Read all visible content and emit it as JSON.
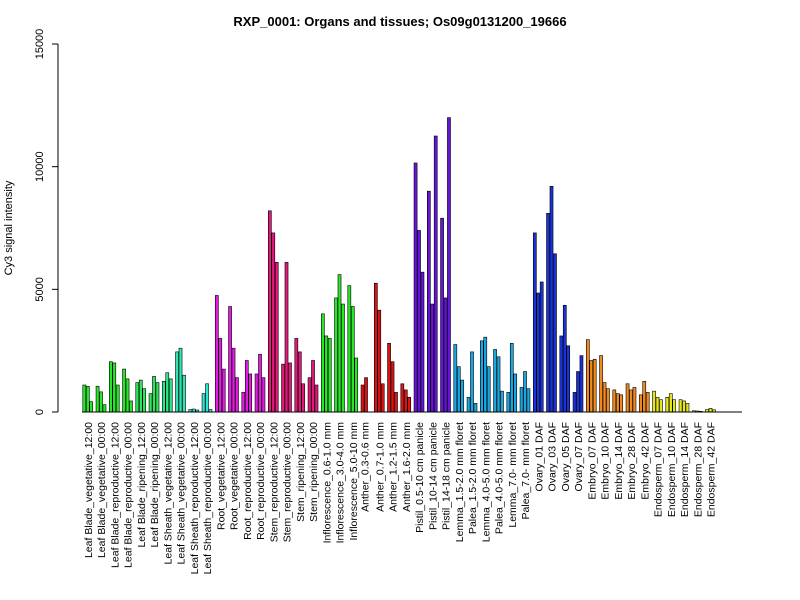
{
  "chart_data": {
    "type": "bar",
    "title": "RXP_0001: Organs and tissues; Os09g0131200_19666",
    "ylabel": "Cy3 signal intensity",
    "xlabel": "",
    "ylim": [
      0,
      15000
    ],
    "yticks": [
      0,
      5000,
      10000,
      15000
    ],
    "grid": false,
    "legend": "none",
    "groups": [
      {
        "label": "Leaf Blade_vegetative_12:00",
        "color": "#29e629",
        "values": [
          1100,
          1050,
          420
        ]
      },
      {
        "label": "Leaf Blade_vegetative_00:00",
        "color": "#29e629",
        "values": [
          1050,
          820,
          300
        ]
      },
      {
        "label": "Leaf Blade_reproductive_12:00",
        "color": "#29e629",
        "values": [
          2050,
          2000,
          1100
        ]
      },
      {
        "label": "Leaf Blade_reproductive_00:00",
        "color": "#29e629",
        "values": [
          1750,
          1350,
          450
        ]
      },
      {
        "label": "Leaf Blade_ripening_12:00",
        "color": "#2ee65c",
        "values": [
          1200,
          1300,
          950
        ]
      },
      {
        "label": "Leaf Blade_ripening_00:00",
        "color": "#2ee65c",
        "values": [
          750,
          1450,
          1200
        ]
      },
      {
        "label": "Leaf Sheath_vegetative_12:00",
        "color": "#2ee68a",
        "values": [
          1250,
          1600,
          1350
        ]
      },
      {
        "label": "Leaf Sheath_vegetative_00:00",
        "color": "#2ee6b4",
        "values": [
          2450,
          2600,
          1500
        ]
      },
      {
        "label": "Leaf Sheath_reproductive_12:00",
        "color": "#2ee6c8",
        "values": [
          100,
          120,
          80
        ]
      },
      {
        "label": "Leaf Sheath_reproductive_00:00",
        "color": "#2ee6d2",
        "values": [
          750,
          1150,
          100
        ]
      },
      {
        "label": "Root_vegetative_12:00",
        "color": "#e01ee0",
        "values": [
          4750,
          3000,
          1750
        ]
      },
      {
        "label": "Root_vegetative_00:00",
        "color": "#e01ee0",
        "values": [
          4300,
          2600,
          1400
        ]
      },
      {
        "label": "Root_reproductive_12:00",
        "color": "#e01ee0",
        "values": [
          800,
          2100,
          1550
        ]
      },
      {
        "label": "Root_reproductive_00:00",
        "color": "#e01ee0",
        "values": [
          1550,
          2350,
          1400
        ]
      },
      {
        "label": "Stem_reproductive_12:00",
        "color": "#e0197a",
        "values": [
          8200,
          7300,
          6100
        ]
      },
      {
        "label": "Stem_reproductive_00:00",
        "color": "#e0197a",
        "values": [
          1950,
          6100,
          2000
        ]
      },
      {
        "label": "Stem_ripening_12:00",
        "color": "#e0197a",
        "values": [
          3000,
          2450,
          1150
        ]
      },
      {
        "label": "Stem_ripening_00:00",
        "color": "#e0197a",
        "values": [
          1400,
          2100,
          1100
        ]
      },
      {
        "label": "Inflorescence_0.6-1.0 mm",
        "color": "#29e629",
        "values": [
          4000,
          3100,
          3000
        ]
      },
      {
        "label": "Inflorescence_3.0-4.0 mm",
        "color": "#29e629",
        "values": [
          4650,
          5600,
          4400
        ]
      },
      {
        "label": "Inflorescence_5.0-10 mm",
        "color": "#29e629",
        "values": [
          5150,
          4300,
          2200
        ]
      },
      {
        "label": "Anther_0.3-0.6 mm",
        "color": "#d91414",
        "values": [
          1100,
          1400
        ]
      },
      {
        "label": "Anther_0.7-1.0 mm",
        "color": "#d91414",
        "values": [
          5250,
          4150,
          1150
        ]
      },
      {
        "label": "Anther_1.2-1.5 mm",
        "color": "#d91414",
        "values": [
          2800,
          2050,
          800
        ]
      },
      {
        "label": "Anther_1.6-2.0 mm",
        "color": "#d91414",
        "values": [
          1150,
          900,
          600
        ]
      },
      {
        "label": "Pistil_0.5-10 cm panicle",
        "color": "#6614d9",
        "values": [
          10150,
          7400,
          5700
        ]
      },
      {
        "label": "Pistil_10-14 cm panicle",
        "color": "#6614d9",
        "values": [
          9000,
          4400,
          11250
        ]
      },
      {
        "label": "Pistil_14-18 cm panicle",
        "color": "#6614d9",
        "values": [
          7900,
          4650,
          12000
        ]
      },
      {
        "label": "Lemma_1.5-2.0 mm floret",
        "color": "#1aa6e0",
        "values": [
          2750,
          1850,
          1300
        ]
      },
      {
        "label": "Palea_1.5-2.0 mm floret",
        "color": "#1aa6e0",
        "values": [
          600,
          2450,
          350
        ]
      },
      {
        "label": "Lemma_4.0-5.0 mm floret",
        "color": "#1aa6e0",
        "values": [
          2900,
          3050,
          1850
        ]
      },
      {
        "label": "Palea_4.0-5.0 mm floret",
        "color": "#1aa6e0",
        "values": [
          2550,
          2250,
          850
        ]
      },
      {
        "label": "Lemma_7.0- mm floret",
        "color": "#1aa6e0",
        "values": [
          800,
          2800,
          1550
        ]
      },
      {
        "label": "Palea_7.0- mm floret",
        "color": "#1aa6e0",
        "values": [
          1000,
          1650,
          950
        ]
      },
      {
        "label": "Ovary_01 DAF",
        "color": "#1a33d9",
        "values": [
          7300,
          4850,
          5300
        ]
      },
      {
        "label": "Ovary_03 DAF",
        "color": "#1a33d9",
        "values": [
          8100,
          9200,
          6450
        ]
      },
      {
        "label": "Ovary_05 DAF",
        "color": "#1a33d9",
        "values": [
          3100,
          4350,
          2700
        ]
      },
      {
        "label": "Ovary_07 DAF",
        "color": "#1a33d9",
        "values": [
          800,
          1650,
          2300
        ]
      },
      {
        "label": "Embryo_07 DAF",
        "color": "#f08a1f",
        "values": [
          2950,
          2100,
          2150
        ]
      },
      {
        "label": "Embryo_10 DAF",
        "color": "#f08a1f",
        "values": [
          2300,
          1200,
          950
        ]
      },
      {
        "label": "Embryo_14 DAF",
        "color": "#f08a1f",
        "values": [
          900,
          750,
          700
        ]
      },
      {
        "label": "Embryo_28 DAF",
        "color": "#f08a1f",
        "values": [
          1150,
          900,
          1000
        ]
      },
      {
        "label": "Embryo_42 DAF",
        "color": "#f08a1f",
        "values": [
          700,
          1250,
          800
        ]
      },
      {
        "label": "Endosperm_07 DAF",
        "color": "#e6e61e",
        "values": [
          850,
          600,
          500
        ]
      },
      {
        "label": "Endosperm_10 DAF",
        "color": "#e6e61e",
        "values": [
          600,
          750,
          500
        ]
      },
      {
        "label": "Endosperm_14 DAF",
        "color": "#e6e61e",
        "values": [
          500,
          450,
          350
        ]
      },
      {
        "label": "Endosperm_28 DAF",
        "color": "#e6e61e",
        "values": [
          50,
          40,
          30
        ]
      },
      {
        "label": "Endosperm_42 DAF",
        "color": "#e6e61e",
        "values": [
          100,
          150,
          90
        ]
      }
    ]
  }
}
